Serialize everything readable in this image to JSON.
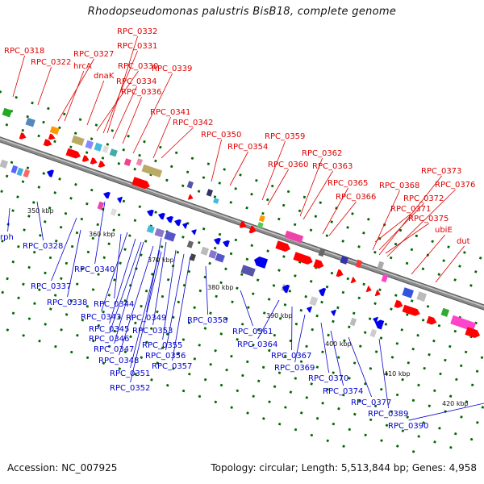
{
  "title": "Rhodopseudomonas palustris BisB18, complete genome",
  "footer": {
    "accession": "Accession: NC_007925",
    "summary": "Topology: circular; Length: 5,513,844 bp; Genes: 4,958"
  },
  "colors": {
    "forward_label": "#dd0000",
    "reverse_label": "#0000cc",
    "backbone": "#8a8a8a",
    "tick": "#006600"
  },
  "scale": [
    {
      "label": "350 kbp"
    },
    {
      "label": "360 kbp"
    },
    {
      "label": "370 kbp"
    },
    {
      "label": "380 kbp"
    },
    {
      "label": "390 kbp"
    },
    {
      "label": "400 kbp"
    },
    {
      "label": "410 kbp"
    },
    {
      "label": "420 kbp"
    }
  ],
  "forward_genes": [
    {
      "label": "RPC_0318"
    },
    {
      "label": "RPC_0322"
    },
    {
      "label": "RPC_0327"
    },
    {
      "label": "hrcA"
    },
    {
      "label": "dnaK"
    },
    {
      "label": "RPC_0330"
    },
    {
      "label": "RPC_0331"
    },
    {
      "label": "RPC_0332"
    },
    {
      "label": "RPC_0334"
    },
    {
      "label": "RPC_0336"
    },
    {
      "label": "RPC_0339"
    },
    {
      "label": "RPC_0341"
    },
    {
      "label": "RPC_0342"
    },
    {
      "label": "RPC_0350"
    },
    {
      "label": "RPC_0354"
    },
    {
      "label": "RPC_0359"
    },
    {
      "label": "RPC_0360"
    },
    {
      "label": "RPC_0362"
    },
    {
      "label": "RPC_0363"
    },
    {
      "label": "RPC_0365"
    },
    {
      "label": "RPC_0366"
    },
    {
      "label": "RPC_0368"
    },
    {
      "label": "RPC_0373"
    },
    {
      "label": "RPC_0376"
    },
    {
      "label": "RPC_0372"
    },
    {
      "label": "RPC_0371"
    },
    {
      "label": "RPC_0375"
    },
    {
      "label": "ubiE"
    },
    {
      "label": "dut"
    }
  ],
  "reverse_genes": [
    {
      "label": "rph"
    },
    {
      "label": "RPC_0328"
    },
    {
      "label": "RPC_0340"
    },
    {
      "label": "RPC_0337"
    },
    {
      "label": "RPC_0338"
    },
    {
      "label": "RPC_0344"
    },
    {
      "label": "RPC_0343"
    },
    {
      "label": "RPC_0349"
    },
    {
      "label": "RPC_0345"
    },
    {
      "label": "RPC_0353"
    },
    {
      "label": "RPC_0346"
    },
    {
      "label": "RPC_0347"
    },
    {
      "label": "RPC_0348"
    },
    {
      "label": "RPC_0355"
    },
    {
      "label": "RPC_0356"
    },
    {
      "label": "RPC_0357"
    },
    {
      "label": "RPC_0351"
    },
    {
      "label": "RPC_0352"
    },
    {
      "label": "RPC_0358"
    },
    {
      "label": "RPC_0361"
    },
    {
      "label": "RPC_0364"
    },
    {
      "label": "RPC_0367"
    },
    {
      "label": "RPC_0369"
    },
    {
      "label": "RPC_0370"
    },
    {
      "label": "RPC_0374"
    },
    {
      "label": "RPC_0377"
    },
    {
      "label": "RPC_0389"
    },
    {
      "label": "RPC_0390"
    }
  ]
}
